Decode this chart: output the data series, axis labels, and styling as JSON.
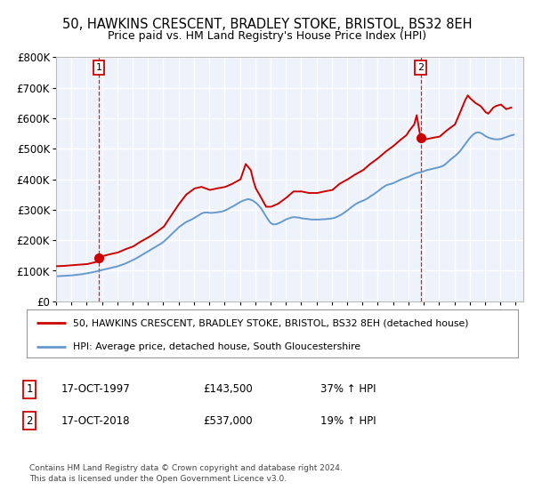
{
  "title": "50, HAWKINS CRESCENT, BRADLEY STOKE, BRISTOL, BS32 8EH",
  "subtitle": "Price paid vs. HM Land Registry's House Price Index (HPI)",
  "ylim": [
    0,
    800000
  ],
  "yticks": [
    0,
    100000,
    200000,
    300000,
    400000,
    500000,
    600000,
    700000,
    800000
  ],
  "ytick_labels": [
    "£0",
    "£100K",
    "£200K",
    "£300K",
    "£400K",
    "£500K",
    "£600K",
    "£700K",
    "£800K"
  ],
  "xlim_start": 1995.0,
  "xlim_end": 2025.5,
  "sale1_x": 1997.79,
  "sale1_y": 143500,
  "sale2_x": 2018.79,
  "sale2_y": 537000,
  "sale1_date": "17-OCT-1997",
  "sale1_price": "£143,500",
  "sale1_hpi": "37% ↑ HPI",
  "sale2_date": "17-OCT-2018",
  "sale2_price": "£537,000",
  "sale2_hpi": "19% ↑ HPI",
  "line_property_color": "#cc0000",
  "line_hpi_color": "#6699cc",
  "background_color": "#eef2fb",
  "grid_color": "#ffffff",
  "legend_label_property": "50, HAWKINS CRESCENT, BRADLEY STOKE, BRISTOL, BS32 8EH (detached house)",
  "legend_label_hpi": "HPI: Average price, detached house, South Gloucestershire",
  "footer": "Contains HM Land Registry data © Crown copyright and database right 2024.\nThis data is licensed under the Open Government Licence v3.0.",
  "hpi_data": [
    [
      1995.04,
      82000
    ],
    [
      1995.21,
      82500
    ],
    [
      1995.38,
      83000
    ],
    [
      1995.54,
      83500
    ],
    [
      1995.71,
      84000
    ],
    [
      1995.88,
      84500
    ],
    [
      1996.04,
      85000
    ],
    [
      1996.21,
      86000
    ],
    [
      1996.38,
      87000
    ],
    [
      1996.54,
      88000
    ],
    [
      1996.71,
      89000
    ],
    [
      1996.88,
      90500
    ],
    [
      1997.04,
      92000
    ],
    [
      1997.21,
      93500
    ],
    [
      1997.38,
      95000
    ],
    [
      1997.54,
      97000
    ],
    [
      1997.71,
      99000
    ],
    [
      1997.88,
      101000
    ],
    [
      1998.04,
      103000
    ],
    [
      1998.21,
      105000
    ],
    [
      1998.38,
      107000
    ],
    [
      1998.54,
      109000
    ],
    [
      1998.71,
      111000
    ],
    [
      1998.88,
      113000
    ],
    [
      1999.04,
      115000
    ],
    [
      1999.21,
      118000
    ],
    [
      1999.38,
      121000
    ],
    [
      1999.54,
      124000
    ],
    [
      1999.71,
      128000
    ],
    [
      1999.88,
      132000
    ],
    [
      2000.04,
      136000
    ],
    [
      2000.21,
      140000
    ],
    [
      2000.38,
      145000
    ],
    [
      2000.54,
      150000
    ],
    [
      2000.71,
      155000
    ],
    [
      2000.88,
      160000
    ],
    [
      2001.04,
      165000
    ],
    [
      2001.21,
      170000
    ],
    [
      2001.38,
      175000
    ],
    [
      2001.54,
      180000
    ],
    [
      2001.71,
      185000
    ],
    [
      2001.88,
      190000
    ],
    [
      2002.04,
      196000
    ],
    [
      2002.21,
      204000
    ],
    [
      2002.38,
      212000
    ],
    [
      2002.54,
      220000
    ],
    [
      2002.71,
      228000
    ],
    [
      2002.88,
      236000
    ],
    [
      2003.04,
      244000
    ],
    [
      2003.21,
      250000
    ],
    [
      2003.38,
      256000
    ],
    [
      2003.54,
      261000
    ],
    [
      2003.71,
      265000
    ],
    [
      2003.88,
      269000
    ],
    [
      2004.04,
      274000
    ],
    [
      2004.21,
      279000
    ],
    [
      2004.38,
      284000
    ],
    [
      2004.54,
      289000
    ],
    [
      2004.71,
      291000
    ],
    [
      2004.88,
      291000
    ],
    [
      2005.04,
      290000
    ],
    [
      2005.21,
      290000
    ],
    [
      2005.38,
      291000
    ],
    [
      2005.54,
      292000
    ],
    [
      2005.71,
      293000
    ],
    [
      2005.88,
      295000
    ],
    [
      2006.04,
      298000
    ],
    [
      2006.21,
      302000
    ],
    [
      2006.38,
      307000
    ],
    [
      2006.54,
      311000
    ],
    [
      2006.71,
      316000
    ],
    [
      2006.88,
      321000
    ],
    [
      2007.04,
      326000
    ],
    [
      2007.21,
      330000
    ],
    [
      2007.38,
      333000
    ],
    [
      2007.54,
      335000
    ],
    [
      2007.71,
      333000
    ],
    [
      2007.88,
      329000
    ],
    [
      2008.04,
      323000
    ],
    [
      2008.21,
      315000
    ],
    [
      2008.38,
      305000
    ],
    [
      2008.54,
      292000
    ],
    [
      2008.71,
      278000
    ],
    [
      2008.88,
      265000
    ],
    [
      2009.04,
      255000
    ],
    [
      2009.21,
      252000
    ],
    [
      2009.38,
      253000
    ],
    [
      2009.54,
      256000
    ],
    [
      2009.71,
      260000
    ],
    [
      2009.88,
      265000
    ],
    [
      2010.04,
      269000
    ],
    [
      2010.21,
      272000
    ],
    [
      2010.38,
      275000
    ],
    [
      2010.54,
      276000
    ],
    [
      2010.71,
      275000
    ],
    [
      2010.88,
      274000
    ],
    [
      2011.04,
      272000
    ],
    [
      2011.21,
      271000
    ],
    [
      2011.38,
      270000
    ],
    [
      2011.54,
      269000
    ],
    [
      2011.71,
      268000
    ],
    [
      2011.88,
      268000
    ],
    [
      2012.04,
      268000
    ],
    [
      2012.21,
      268000
    ],
    [
      2012.38,
      269000
    ],
    [
      2012.54,
      269000
    ],
    [
      2012.71,
      270000
    ],
    [
      2012.88,
      271000
    ],
    [
      2013.04,
      272000
    ],
    [
      2013.21,
      274000
    ],
    [
      2013.38,
      278000
    ],
    [
      2013.54,
      282000
    ],
    [
      2013.71,
      287000
    ],
    [
      2013.88,
      293000
    ],
    [
      2014.04,
      299000
    ],
    [
      2014.21,
      306000
    ],
    [
      2014.38,
      312000
    ],
    [
      2014.54,
      318000
    ],
    [
      2014.71,
      323000
    ],
    [
      2014.88,
      327000
    ],
    [
      2015.04,
      330000
    ],
    [
      2015.21,
      334000
    ],
    [
      2015.38,
      339000
    ],
    [
      2015.54,
      345000
    ],
    [
      2015.71,
      350000
    ],
    [
      2015.88,
      356000
    ],
    [
      2016.04,
      362000
    ],
    [
      2016.21,
      369000
    ],
    [
      2016.38,
      375000
    ],
    [
      2016.54,
      380000
    ],
    [
      2016.71,
      383000
    ],
    [
      2016.88,
      385000
    ],
    [
      2017.04,
      388000
    ],
    [
      2017.21,
      392000
    ],
    [
      2017.38,
      396000
    ],
    [
      2017.54,
      400000
    ],
    [
      2017.71,
      403000
    ],
    [
      2017.88,
      406000
    ],
    [
      2018.04,
      409000
    ],
    [
      2018.21,
      413000
    ],
    [
      2018.38,
      417000
    ],
    [
      2018.54,
      420000
    ],
    [
      2018.71,
      422000
    ],
    [
      2018.88,
      424000
    ],
    [
      2019.04,
      427000
    ],
    [
      2019.21,
      430000
    ],
    [
      2019.38,
      432000
    ],
    [
      2019.54,
      434000
    ],
    [
      2019.71,
      436000
    ],
    [
      2019.88,
      438000
    ],
    [
      2020.04,
      440000
    ],
    [
      2020.21,
      443000
    ],
    [
      2020.38,
      448000
    ],
    [
      2020.54,
      455000
    ],
    [
      2020.71,
      463000
    ],
    [
      2020.88,
      470000
    ],
    [
      2021.04,
      476000
    ],
    [
      2021.21,
      484000
    ],
    [
      2021.38,
      493000
    ],
    [
      2021.54,
      504000
    ],
    [
      2021.71,
      516000
    ],
    [
      2021.88,
      527000
    ],
    [
      2022.04,
      537000
    ],
    [
      2022.21,
      546000
    ],
    [
      2022.38,
      552000
    ],
    [
      2022.54,
      554000
    ],
    [
      2022.71,
      552000
    ],
    [
      2022.88,
      547000
    ],
    [
      2023.04,
      541000
    ],
    [
      2023.21,
      537000
    ],
    [
      2023.38,
      534000
    ],
    [
      2023.54,
      532000
    ],
    [
      2023.71,
      531000
    ],
    [
      2023.88,
      531000
    ],
    [
      2024.04,
      532000
    ],
    [
      2024.21,
      535000
    ],
    [
      2024.38,
      538000
    ],
    [
      2024.54,
      541000
    ],
    [
      2024.71,
      544000
    ],
    [
      2024.88,
      546000
    ]
  ],
  "property_data": [
    [
      1995.04,
      115000
    ],
    [
      1995.5,
      116000
    ],
    [
      1996.0,
      118000
    ],
    [
      1996.5,
      120000
    ],
    [
      1997.04,
      122000
    ],
    [
      1997.38,
      126000
    ],
    [
      1997.71,
      130000
    ],
    [
      1997.79,
      143500
    ],
    [
      1998.04,
      148000
    ],
    [
      1998.5,
      154000
    ],
    [
      1999.04,
      160000
    ],
    [
      1999.5,
      170000
    ],
    [
      2000.04,
      180000
    ],
    [
      2000.5,
      195000
    ],
    [
      2001.04,
      210000
    ],
    [
      2001.5,
      225000
    ],
    [
      2002.04,
      245000
    ],
    [
      2002.5,
      280000
    ],
    [
      2003.04,
      320000
    ],
    [
      2003.5,
      350000
    ],
    [
      2004.04,
      370000
    ],
    [
      2004.5,
      375000
    ],
    [
      2005.04,
      365000
    ],
    [
      2005.5,
      370000
    ],
    [
      2006.04,
      375000
    ],
    [
      2006.5,
      385000
    ],
    [
      2007.04,
      400000
    ],
    [
      2007.38,
      450000
    ],
    [
      2007.71,
      430000
    ],
    [
      2007.88,
      395000
    ],
    [
      2008.04,
      370000
    ],
    [
      2008.38,
      340000
    ],
    [
      2008.71,
      310000
    ],
    [
      2009.04,
      310000
    ],
    [
      2009.5,
      320000
    ],
    [
      2010.04,
      340000
    ],
    [
      2010.5,
      360000
    ],
    [
      2011.04,
      360000
    ],
    [
      2011.5,
      355000
    ],
    [
      2012.04,
      355000
    ],
    [
      2012.5,
      360000
    ],
    [
      2013.04,
      365000
    ],
    [
      2013.5,
      385000
    ],
    [
      2014.04,
      400000
    ],
    [
      2014.5,
      415000
    ],
    [
      2015.04,
      430000
    ],
    [
      2015.5,
      450000
    ],
    [
      2016.04,
      470000
    ],
    [
      2016.5,
      490000
    ],
    [
      2017.04,
      510000
    ],
    [
      2017.5,
      530000
    ],
    [
      2017.88,
      545000
    ],
    [
      2018.04,
      558000
    ],
    [
      2018.38,
      580000
    ],
    [
      2018.54,
      610000
    ],
    [
      2018.79,
      537000
    ],
    [
      2019.04,
      530000
    ],
    [
      2019.5,
      535000
    ],
    [
      2020.04,
      540000
    ],
    [
      2020.5,
      560000
    ],
    [
      2021.04,
      580000
    ],
    [
      2021.38,
      620000
    ],
    [
      2021.71,
      660000
    ],
    [
      2021.88,
      675000
    ],
    [
      2022.04,
      665000
    ],
    [
      2022.38,
      650000
    ],
    [
      2022.71,
      640000
    ],
    [
      2022.88,
      630000
    ],
    [
      2023.04,
      620000
    ],
    [
      2023.21,
      615000
    ],
    [
      2023.38,
      625000
    ],
    [
      2023.54,
      635000
    ],
    [
      2023.71,
      640000
    ],
    [
      2024.04,
      645000
    ],
    [
      2024.38,
      630000
    ],
    [
      2024.71,
      635000
    ]
  ]
}
